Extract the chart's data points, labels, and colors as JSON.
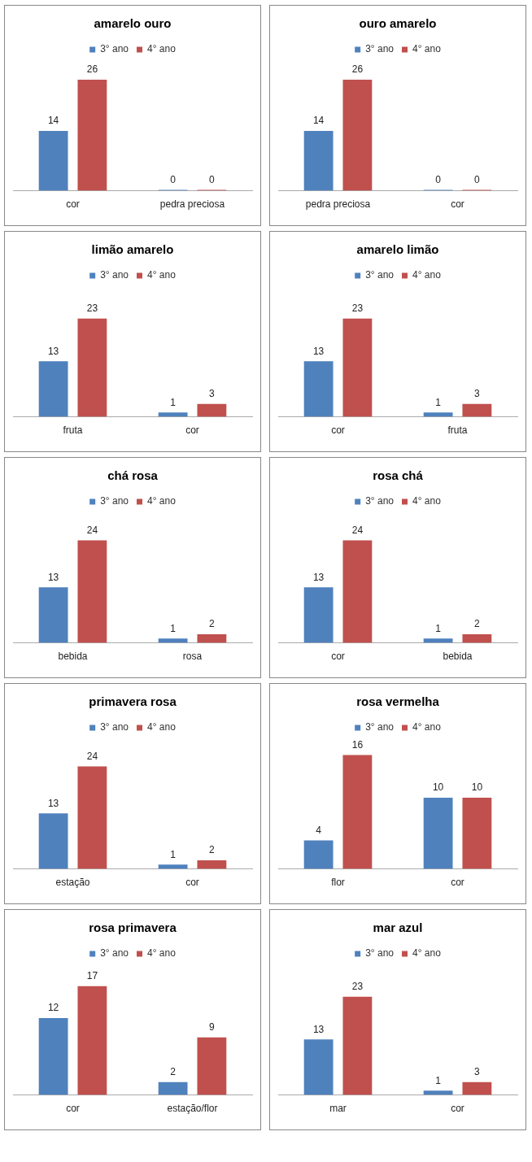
{
  "chart_data": [
    {
      "type": "bar",
      "title": "amarelo ouro",
      "categories": [
        "cor",
        "pedra preciosa"
      ],
      "series": [
        {
          "name": "3° ano",
          "color": "#4f81bd",
          "values": [
            14,
            0
          ]
        },
        {
          "name": "4° ano",
          "color": "#c0504d",
          "values": [
            26,
            0
          ]
        }
      ],
      "data_labels": true,
      "legend": "top",
      "tick_labels": "x"
    },
    {
      "type": "bar",
      "title": "ouro amarelo",
      "categories": [
        "pedra preciosa",
        "cor"
      ],
      "series": [
        {
          "name": "3° ano",
          "color": "#4f81bd",
          "values": [
            14,
            0
          ]
        },
        {
          "name": "4° ano",
          "color": "#c0504d",
          "values": [
            26,
            0
          ]
        }
      ],
      "data_labels": true,
      "legend": "top",
      "tick_labels": "x"
    },
    {
      "type": "bar",
      "title": "limão amarelo",
      "categories": [
        "fruta",
        "cor"
      ],
      "series": [
        {
          "name": "3° ano",
          "color": "#4f81bd",
          "values": [
            13,
            1
          ]
        },
        {
          "name": "4° ano",
          "color": "#c0504d",
          "values": [
            23,
            3
          ]
        }
      ],
      "data_labels": true,
      "legend": "top",
      "tick_labels": "x"
    },
    {
      "type": "bar",
      "title": "amarelo limão",
      "categories": [
        "cor",
        "fruta"
      ],
      "series": [
        {
          "name": "3° ano",
          "color": "#4f81bd",
          "values": [
            13,
            1
          ]
        },
        {
          "name": "4° ano",
          "color": "#c0504d",
          "values": [
            23,
            3
          ]
        }
      ],
      "data_labels": true,
      "legend": "top",
      "tick_labels": "x"
    },
    {
      "type": "bar",
      "title": "chá rosa",
      "categories": [
        "bebida",
        "rosa"
      ],
      "series": [
        {
          "name": "3° ano",
          "color": "#4f81bd",
          "values": [
            13,
            1
          ]
        },
        {
          "name": "4° ano",
          "color": "#c0504d",
          "values": [
            24,
            2
          ]
        }
      ],
      "data_labels": true,
      "legend": "top",
      "tick_labels": "x"
    },
    {
      "type": "bar",
      "title": "rosa chá",
      "categories": [
        "cor",
        "bebida"
      ],
      "series": [
        {
          "name": "3° ano",
          "color": "#4f81bd",
          "values": [
            13,
            1
          ]
        },
        {
          "name": "4° ano",
          "color": "#c0504d",
          "values": [
            24,
            2
          ]
        }
      ],
      "data_labels": true,
      "legend": "top",
      "tick_labels": "x"
    },
    {
      "type": "bar",
      "title": "primavera rosa",
      "categories": [
        "estação",
        "cor"
      ],
      "series": [
        {
          "name": "3° ano",
          "color": "#4f81bd",
          "values": [
            13,
            1
          ]
        },
        {
          "name": "4° ano",
          "color": "#c0504d",
          "values": [
            24,
            2
          ]
        }
      ],
      "data_labels": true,
      "legend": "top",
      "tick_labels": "x"
    },
    {
      "type": "bar",
      "title": "rosa vermelha",
      "categories": [
        "flor",
        "cor"
      ],
      "series": [
        {
          "name": "3° ano",
          "color": "#4f81bd",
          "values": [
            4,
            10
          ]
        },
        {
          "name": "4° ano",
          "color": "#c0504d",
          "values": [
            16,
            10
          ]
        }
      ],
      "data_labels": true,
      "legend": "top",
      "tick_labels": "x"
    },
    {
      "type": "bar",
      "title": "rosa primavera",
      "categories": [
        "cor",
        "estação/flor"
      ],
      "series": [
        {
          "name": "3° ano",
          "color": "#4f81bd",
          "values": [
            12,
            2
          ]
        },
        {
          "name": "4° ano",
          "color": "#c0504d",
          "values": [
            17,
            9
          ]
        }
      ],
      "data_labels": true,
      "legend": "top",
      "tick_labels": "x"
    },
    {
      "type": "bar",
      "title": "mar azul",
      "categories": [
        "mar",
        "cor"
      ],
      "series": [
        {
          "name": "3° ano",
          "color": "#4f81bd",
          "values": [
            13,
            1
          ]
        },
        {
          "name": "4° ano",
          "color": "#c0504d",
          "values": [
            23,
            3
          ]
        }
      ],
      "data_labels": true,
      "legend": "top",
      "tick_labels": "x"
    }
  ]
}
